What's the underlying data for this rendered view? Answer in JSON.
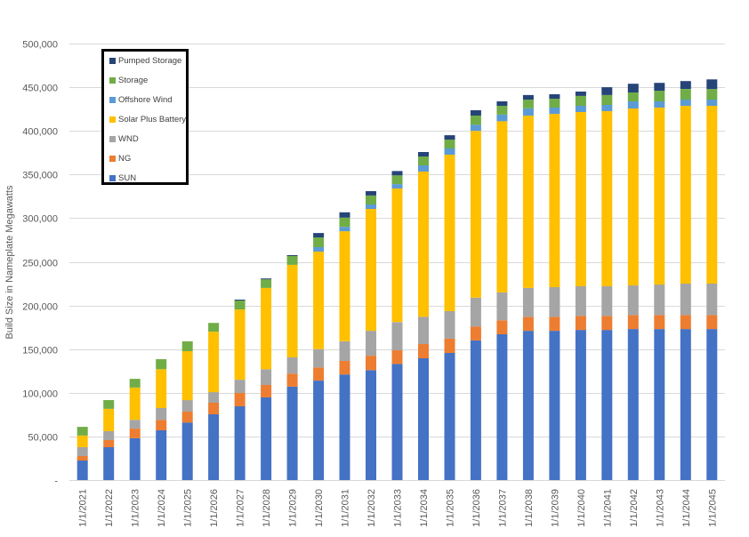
{
  "chart_data": {
    "type": "bar",
    "stacked": true,
    "title": "",
    "xlabel": "",
    "ylabel": "Build Size in Nameplate Megawatts",
    "ylim": [
      0,
      500000
    ],
    "yticks": [
      0,
      50000,
      100000,
      150000,
      200000,
      250000,
      300000,
      350000,
      400000,
      450000,
      500000
    ],
    "ytick_labels": [
      "-",
      "50,000",
      "100,000",
      "150,000",
      "200,000",
      "250,000",
      "300,000",
      "350,000",
      "400,000",
      "450,000",
      "500,000"
    ],
    "grid": true,
    "legend_position": "top-left",
    "categories": [
      "1/1/2021",
      "1/1/2022",
      "1/1/2023",
      "1/1/2024",
      "1/1/2025",
      "1/1/2026",
      "1/1/2027",
      "1/1/2028",
      "1/1/2029",
      "1/1/2030",
      "1/1/2031",
      "1/1/2032",
      "1/1/2033",
      "1/1/2034",
      "1/1/2035",
      "1/1/2036",
      "1/1/2037",
      "1/1/2038",
      "1/1/2039",
      "1/1/2040",
      "1/1/2041",
      "1/1/2042",
      "1/1/2043",
      "1/1/2044",
      "1/1/2045"
    ],
    "series": [
      {
        "name": "SUN",
        "color": "#4472C4",
        "values": [
          22400,
          37700,
          48000,
          57000,
          66000,
          75400,
          84500,
          94700,
          107000,
          114000,
          121000,
          126000,
          133000,
          139500,
          145600,
          160000,
          167000,
          171000,
          171000,
          172000,
          172000,
          173000,
          173000,
          173000,
          173000
        ]
      },
      {
        "name": "NG",
        "color": "#ED7D31",
        "values": [
          5100,
          8100,
          11000,
          12000,
          12400,
          13200,
          15300,
          14300,
          15000,
          15000,
          15500,
          16500,
          15700,
          16300,
          16400,
          16000,
          16000,
          16000,
          16000,
          16000,
          16000,
          16000,
          16000,
          16000,
          16000
        ]
      },
      {
        "name": "WND",
        "color": "#A5A5A5",
        "values": [
          10200,
          10200,
          10000,
          13500,
          13200,
          12200,
          15200,
          18000,
          18500,
          21000,
          22500,
          28500,
          32300,
          31200,
          31500,
          33000,
          32000,
          33000,
          34000,
          34000,
          34000,
          34000,
          35000,
          36000,
          36000
        ]
      },
      {
        "name": "Solar Plus Battery",
        "color": "#FFC000",
        "values": [
          13300,
          25500,
          37000,
          44500,
          56100,
          69200,
          80500,
          93000,
          106000,
          111700,
          126000,
          139600,
          153000,
          166400,
          179200,
          191000,
          196000,
          197500,
          198500,
          199600,
          200600,
          202700,
          202700,
          203700,
          203700
        ]
      },
      {
        "name": "Offshore Wind",
        "color": "#5B9BD5",
        "values": [
          0,
          0,
          0,
          0,
          0,
          0,
          0,
          0,
          0,
          5100,
          5000,
          5100,
          5000,
          7100,
          7100,
          7000,
          7600,
          8200,
          7200,
          7100,
          7100,
          8100,
          7100,
          7100,
          7100
        ]
      },
      {
        "name": "Storage",
        "color": "#70AD47",
        "values": [
          10000,
          10100,
          10000,
          11500,
          11300,
          10000,
          10200,
          10000,
          10100,
          11200,
          10600,
          10300,
          10000,
          10200,
          10200,
          10500,
          10100,
          10100,
          10100,
          11300,
          11300,
          10200,
          12200,
          12200,
          12200
        ]
      },
      {
        "name": "Pumped Storage",
        "color": "#264478",
        "values": [
          0,
          0,
          0,
          0,
          0,
          0,
          1000,
          1000,
          1000,
          5000,
          6100,
          5000,
          5000,
          5100,
          5000,
          6100,
          5100,
          5200,
          5200,
          5000,
          9000,
          10000,
          9000,
          9000,
          11000
        ]
      }
    ]
  }
}
